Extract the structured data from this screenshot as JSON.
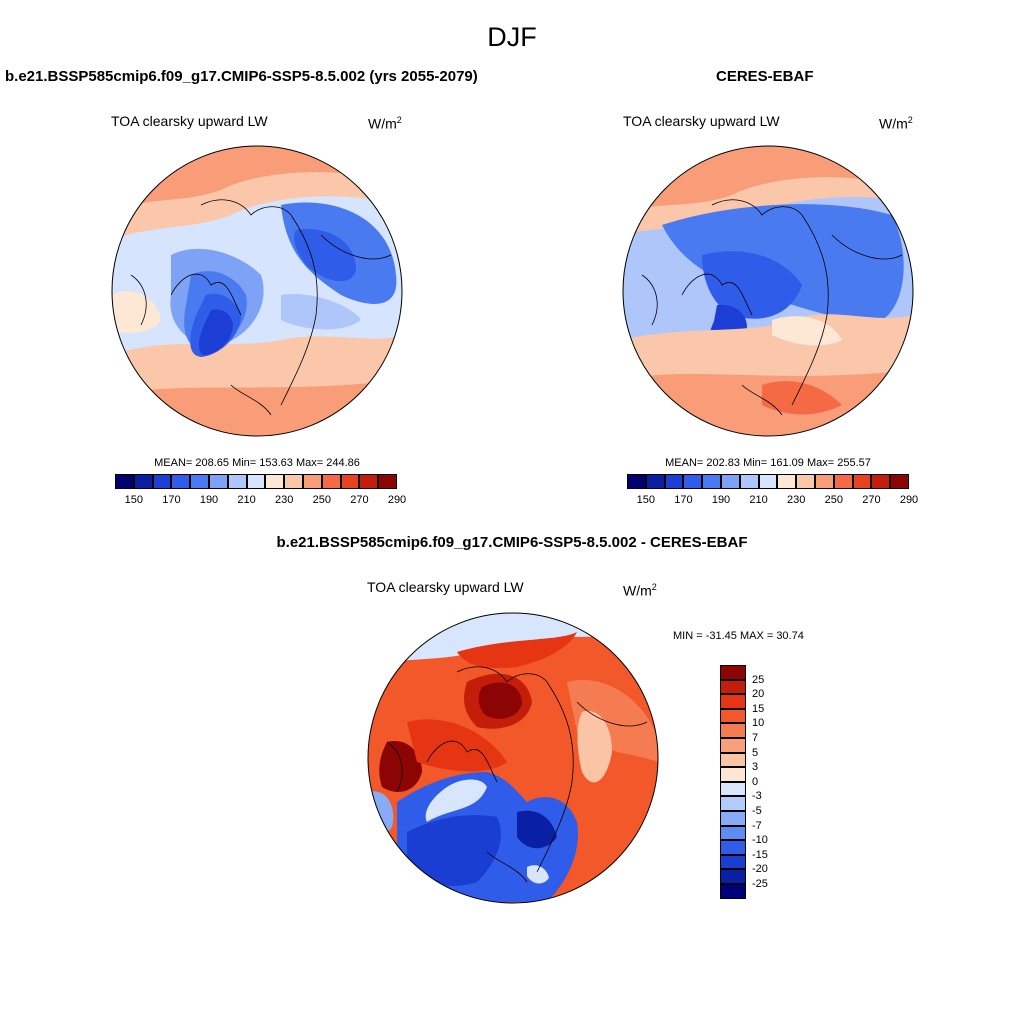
{
  "title": "DJF",
  "panels": [
    {
      "case_title": "b.e21.BSSP585cmip6.f09_g17.CMIP6-SSP5-8.5.002 (yrs 2055-2079)",
      "field": "TOA clearsky upward LW",
      "units_base": "W/m",
      "units_exp": "2",
      "stats": "MEAN= 208.65  Min= 153.63  Max= 244.86"
    },
    {
      "case_title": "CERES-EBAF",
      "field": "TOA clearsky upward LW",
      "units_base": "W/m",
      "units_exp": "2",
      "stats": "MEAN= 202.83  Min= 161.09  Max= 255.57"
    }
  ],
  "diff": {
    "case_title": "b.e21.BSSP585cmip6.f09_g17.CMIP6-SSP5-8.5.002 - CERES-EBAF",
    "field": "TOA clearsky upward LW",
    "units_base": "W/m",
    "units_exp": "2",
    "stats": "MIN = -31.45 MAX =  30.74"
  },
  "colorbar_main": {
    "colors": [
      "#00006e",
      "#0a1fa0",
      "#1c3ed4",
      "#2f5ce8",
      "#4a7af0",
      "#7ea2f5",
      "#aec6fa",
      "#d6e4fd",
      "#fde8d6",
      "#fbc7aa",
      "#f89d78",
      "#f46a44",
      "#e8421f",
      "#c41e0a",
      "#8c0404"
    ],
    "tick_labels": [
      "150",
      "170",
      "190",
      "210",
      "230",
      "250",
      "270",
      "290"
    ]
  },
  "colorbar_diff": {
    "colors": [
      "#8c0404",
      "#c41e0a",
      "#e63512",
      "#f2582a",
      "#f57c50",
      "#f8a07a",
      "#fbc4a6",
      "#fde6d4",
      "#d8e6fd",
      "#b1cbfa",
      "#88abf7",
      "#5f8cf2",
      "#2f5ce8",
      "#1a3ed2",
      "#0a20a4",
      "#00007a"
    ],
    "tick_labels": [
      "25",
      "20",
      "15",
      "10",
      "7",
      "5",
      "3",
      "0",
      "-3",
      "-5",
      "-7",
      "-10",
      "-15",
      "-20",
      "-25"
    ]
  }
}
